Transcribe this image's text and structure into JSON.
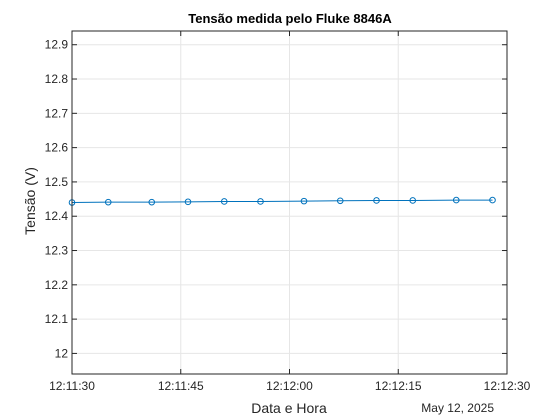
{
  "chart_data": {
    "type": "line",
    "title": "Tensão medida pelo Fluke 8846A",
    "xlabel": "Data e Hora",
    "ylabel": "Tensão (V)",
    "x_secondary_label": "May 12, 2025",
    "x_tick_labels": [
      "12:11:30",
      "12:11:45",
      "12:12:00",
      "12:12:15",
      "12:12:30"
    ],
    "x_tick_seconds": [
      0,
      15,
      30,
      45,
      60
    ],
    "y_ticks": [
      12.0,
      12.1,
      12.2,
      12.3,
      12.4,
      12.5,
      12.6,
      12.7,
      12.8,
      12.9
    ],
    "y_tick_labels": [
      "12",
      "12.1",
      "12.2",
      "12.3",
      "12.4",
      "12.5",
      "12.6",
      "12.7",
      "12.8",
      "12.9"
    ],
    "xlim": [
      "12:11:30",
      "12:12:30"
    ],
    "ylim": [
      11.94,
      12.94
    ],
    "grid": true,
    "series": [
      {
        "color": "#0072BD",
        "marker": "circle",
        "x": [
          "12:11:30",
          "12:11:35",
          "12:11:41",
          "12:11:46",
          "12:11:51",
          "12:11:56",
          "12:12:02",
          "12:12:07",
          "12:12:12",
          "12:12:17",
          "12:12:23",
          "12:12:28"
        ],
        "values": [
          12.44,
          12.441,
          12.441,
          12.442,
          12.443,
          12.443,
          12.444,
          12.445,
          12.446,
          12.446,
          12.447,
          12.447
        ]
      }
    ]
  }
}
